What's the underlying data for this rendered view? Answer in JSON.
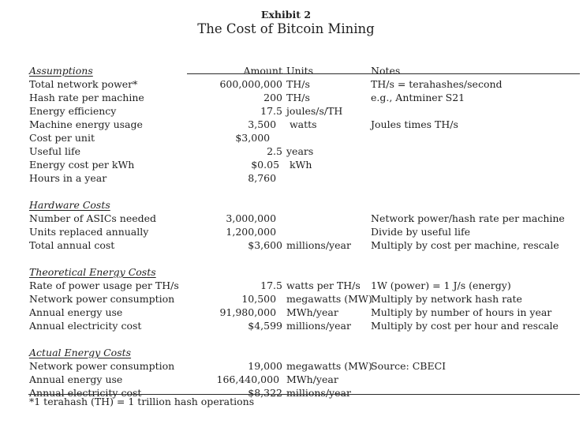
{
  "title": {
    "exhibit": "Exhibit 2",
    "main": "The Cost of Bitcoin Mining"
  },
  "colors": {
    "background": "#ffffff",
    "text": "#1f1f1f",
    "rule": "#2a2a2a"
  },
  "table": {
    "rows": [
      {
        "type": "header",
        "label": "Assumptions",
        "amount": "Amount",
        "units": "Units",
        "notes": "Notes"
      },
      {
        "type": "data",
        "label": "Total network power*",
        "amount": "600,000,000",
        "units": "TH/s",
        "notes": "TH/s = terahashes/second"
      },
      {
        "type": "data",
        "label": "Hash rate per machine",
        "amount": "200",
        "units": "TH/s",
        "notes": "e.g., Antminer S21"
      },
      {
        "type": "data",
        "label": "Energy efficiency",
        "amount": "17.5",
        "units": "joules/s/TH",
        "notes": ""
      },
      {
        "type": "data",
        "label": "Machine energy usage",
        "amount": "3,500  ",
        "units": " watts",
        "notes": "Joules times TH/s"
      },
      {
        "type": "data",
        "label": "Cost per unit",
        "amount": "$3,000    ",
        "units": "",
        "notes": ""
      },
      {
        "type": "data",
        "label": "Useful life",
        "amount": "2.5",
        "units": "years",
        "notes": ""
      },
      {
        "type": "data",
        "label": "Energy cost per kWh",
        "amount": "$0.05 ",
        "units": " kWh",
        "notes": ""
      },
      {
        "type": "data",
        "label": "Hours in a year",
        "amount": "8,760  ",
        "units": "",
        "notes": ""
      },
      {
        "type": "blank"
      },
      {
        "type": "section",
        "label": "Hardware Costs"
      },
      {
        "type": "data",
        "label": "Number of ASICs needed",
        "amount": "3,000,000  ",
        "units": "",
        "notes": "Network power/hash rate per machine"
      },
      {
        "type": "data",
        "label": "Units replaced annually",
        "amount": "1,200,000  ",
        "units": "",
        "notes": "Divide by useful life"
      },
      {
        "type": "data",
        "label": "Total annual cost",
        "amount": "$3,600",
        "units": "millions/year",
        "notes": "Multiply by cost per machine, rescale"
      },
      {
        "type": "blank"
      },
      {
        "type": "section",
        "label": "Theoretical Energy Costs"
      },
      {
        "type": "data",
        "label": "Rate of power usage per TH/s",
        "amount": "17.5",
        "units": "watts per TH/s",
        "notes": "1W (power) = 1 J/s (energy)"
      },
      {
        "type": "data",
        "label": "Network power consumption",
        "amount": "10,500  ",
        "units": "megawatts (MW)",
        "notes": "Multiply by network hash rate"
      },
      {
        "type": "data",
        "label": "Annual energy use",
        "amount": "91,980,000  ",
        "units": "MWh/year",
        "notes": "Multiply by number of hours in year"
      },
      {
        "type": "data",
        "label": "Annual electricity cost",
        "amount": "$4,599",
        "units": "millions/year",
        "notes": "Multiply by cost per hour and rescale"
      },
      {
        "type": "blank"
      },
      {
        "type": "section",
        "label": "Actual Energy Costs"
      },
      {
        "type": "data",
        "label": "Network power consumption",
        "amount": "19,000",
        "units": "megawatts (MW)",
        "notes": "Source: CBECI"
      },
      {
        "type": "data",
        "label": "Annual energy use",
        "amount": "166,440,000 ",
        "units": "MWh/year",
        "notes": ""
      },
      {
        "type": "data",
        "label": "Annual electricity cost",
        "amount": "$8,322",
        "units": "millions/year",
        "notes": ""
      }
    ]
  },
  "footnote": {
    "text": "*1 terahash (TH) = 1 trillion hash operations"
  }
}
